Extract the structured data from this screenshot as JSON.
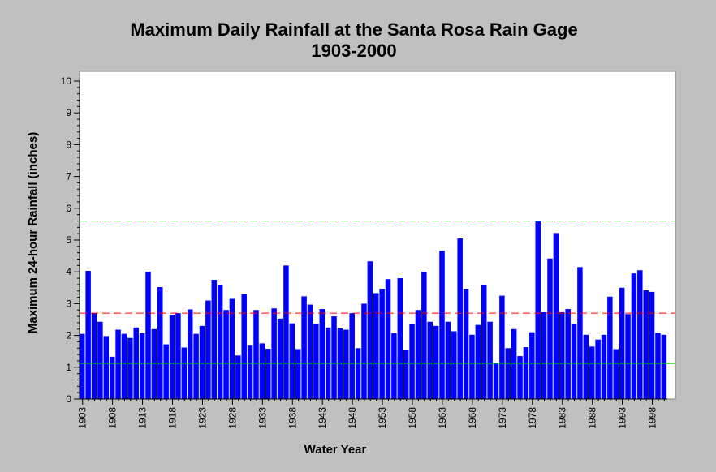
{
  "chart_data": {
    "type": "bar",
    "title": "Maximum Daily Rainfall at the Santa Rosa Rain Gage",
    "subtitle": "1903-2000",
    "xlabel": "Water Year",
    "ylabel": "Maximum 24-hour Rainfall (inches)",
    "ylim": [
      0,
      10
    ],
    "yticks": [
      0,
      1,
      2,
      3,
      4,
      5,
      6,
      7,
      8,
      9,
      10
    ],
    "xtick_labels": [
      "1903",
      "1908",
      "1913",
      "1918",
      "1923",
      "1928",
      "1933",
      "1938",
      "1943",
      "1948",
      "1953",
      "1958",
      "1963",
      "1968",
      "1973",
      "1978",
      "1983",
      "1988",
      "1993",
      "1998"
    ],
    "first_year": 1903,
    "years": [
      1903,
      1904,
      1905,
      1906,
      1907,
      1908,
      1909,
      1910,
      1911,
      1912,
      1913,
      1914,
      1915,
      1916,
      1917,
      1918,
      1919,
      1920,
      1921,
      1922,
      1923,
      1924,
      1925,
      1926,
      1927,
      1928,
      1929,
      1930,
      1931,
      1932,
      1933,
      1934,
      1935,
      1936,
      1937,
      1938,
      1939,
      1940,
      1941,
      1942,
      1943,
      1944,
      1945,
      1946,
      1947,
      1948,
      1949,
      1950,
      1951,
      1952,
      1953,
      1954,
      1955,
      1956,
      1957,
      1958,
      1959,
      1960,
      1961,
      1962,
      1963,
      1964,
      1965,
      1966,
      1967,
      1968,
      1969,
      1970,
      1971,
      1972,
      1973,
      1974,
      1975,
      1976,
      1977,
      1978,
      1979,
      1980,
      1981,
      1982,
      1983,
      1984,
      1985,
      1986,
      1987,
      1988,
      1989,
      1990,
      1991,
      1992,
      1993,
      1994,
      1995,
      1996,
      1997,
      1998,
      1999,
      2000
    ],
    "values": [
      2.05,
      4.03,
      2.7,
      2.43,
      1.98,
      1.33,
      2.18,
      2.05,
      1.92,
      2.25,
      2.07,
      4.0,
      2.2,
      3.52,
      1.72,
      2.65,
      2.7,
      1.62,
      2.82,
      2.05,
      2.3,
      3.1,
      3.75,
      3.58,
      2.8,
      3.15,
      1.37,
      3.3,
      1.68,
      2.8,
      1.75,
      1.58,
      2.85,
      2.53,
      4.2,
      2.38,
      1.57,
      3.23,
      2.97,
      2.37,
      2.83,
      2.25,
      2.6,
      2.22,
      2.18,
      2.7,
      1.6,
      3.0,
      4.33,
      3.33,
      3.47,
      3.77,
      2.07,
      3.8,
      1.53,
      2.35,
      2.8,
      4.0,
      2.43,
      2.3,
      4.67,
      2.43,
      2.13,
      5.05,
      3.47,
      2.02,
      2.33,
      3.58,
      2.43,
      1.12,
      3.25,
      1.6,
      2.2,
      1.35,
      1.63,
      2.1,
      5.6,
      2.73,
      4.42,
      5.22,
      2.73,
      2.83,
      2.37,
      4.15,
      2.02,
      1.65,
      1.87,
      2.02,
      3.22,
      1.57,
      3.5,
      2.67,
      3.95,
      4.05,
      3.42,
      3.37,
      2.08,
      2.02
    ],
    "bar_color": "#0000ff",
    "reference_lines": [
      {
        "value": 5.6,
        "color": "#00c000",
        "style": "dashed"
      },
      {
        "value": 2.7,
        "color": "#ff0000",
        "style": "dashed"
      },
      {
        "value": 1.12,
        "color": "#00c000",
        "style": "solid"
      }
    ],
    "grid": false,
    "plot_background": "#ffffff",
    "page_background": "#c0c0c0"
  }
}
